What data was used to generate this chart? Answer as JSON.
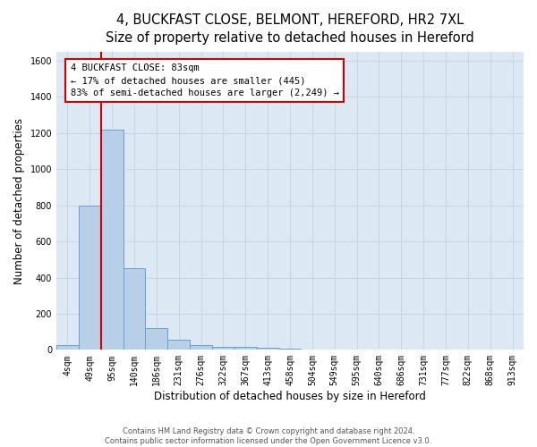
{
  "title_line1": "4, BUCKFAST CLOSE, BELMONT, HEREFORD, HR2 7XL",
  "title_line2": "Size of property relative to detached houses in Hereford",
  "xlabel": "Distribution of detached houses by size in Hereford",
  "ylabel": "Number of detached properties",
  "footer_line1": "Contains HM Land Registry data © Crown copyright and database right 2024.",
  "footer_line2": "Contains public sector information licensed under the Open Government Licence v3.0.",
  "bar_labels": [
    "4sqm",
    "49sqm",
    "95sqm",
    "140sqm",
    "186sqm",
    "231sqm",
    "276sqm",
    "322sqm",
    "367sqm",
    "413sqm",
    "458sqm",
    "504sqm",
    "549sqm",
    "595sqm",
    "640sqm",
    "686sqm",
    "731sqm",
    "777sqm",
    "822sqm",
    "868sqm",
    "913sqm"
  ],
  "bar_values": [
    25,
    800,
    1220,
    450,
    120,
    55,
    28,
    18,
    15,
    12,
    8,
    0,
    0,
    0,
    0,
    0,
    0,
    0,
    0,
    0,
    0
  ],
  "bar_color": "#b8cfe8",
  "bar_edge_color": "#6a9fd0",
  "ylim": [
    0,
    1650
  ],
  "yticks": [
    0,
    200,
    400,
    600,
    800,
    1000,
    1200,
    1400,
    1600
  ],
  "vline_x": 1.5,
  "annotation_text_line1": "4 BUCKFAST CLOSE: 83sqm",
  "annotation_text_line2": "← 17% of detached houses are smaller (445)",
  "annotation_text_line3": "83% of semi-detached houses are larger (2,249) →",
  "annotation_box_color": "#ffffff",
  "annotation_border_color": "#cc0000",
  "vline_color": "#cc0000",
  "grid_color": "#c8d4e4",
  "background_color": "#dce8f4",
  "title_fontsize": 10.5,
  "subtitle_fontsize": 9.5,
  "axis_label_fontsize": 8.5,
  "tick_fontsize": 7,
  "annotation_fontsize": 7.5,
  "footer_fontsize": 6
}
